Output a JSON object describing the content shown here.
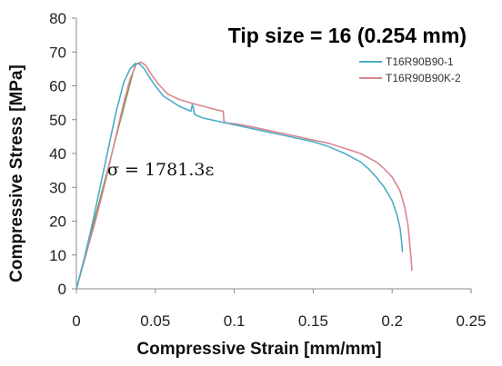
{
  "chart_data": {
    "type": "line",
    "title": "Tip size = 16 (0.254 mm)",
    "xlabel": "Compressive Strain [mm/mm]",
    "ylabel": "Compressive Stress [MPa]",
    "xlim": [
      0,
      0.25
    ],
    "ylim": [
      0,
      80
    ],
    "xticks": [
      0,
      0.05,
      0.1,
      0.15,
      0.2,
      0.25
    ],
    "xtick_labels": [
      "0",
      "0.05",
      "0.1",
      "0.15",
      "0.2",
      "0.25"
    ],
    "yticks": [
      0,
      10,
      20,
      30,
      40,
      50,
      60,
      70,
      80
    ],
    "ytick_labels": [
      "0",
      "10",
      "20",
      "30",
      "40",
      "50",
      "60",
      "70",
      "80"
    ],
    "grid": false,
    "legend_position": "top-right",
    "series": [
      {
        "name": "T16R90B90-1",
        "color": "#4bacc6",
        "x": [
          0,
          0.005,
          0.01,
          0.015,
          0.02,
          0.025,
          0.03,
          0.034,
          0.037,
          0.04,
          0.043,
          0.047,
          0.05,
          0.055,
          0.06,
          0.065,
          0.07,
          0.0725,
          0.0735,
          0.075,
          0.08,
          0.085,
          0.09,
          0.095,
          0.1,
          0.11,
          0.12,
          0.13,
          0.14,
          0.15,
          0.16,
          0.17,
          0.18,
          0.185,
          0.19,
          0.195,
          0.2,
          0.203,
          0.205,
          0.206,
          0.2065
        ],
        "y": [
          0,
          9,
          19,
          30,
          41,
          52,
          61,
          65,
          66.5,
          66.5,
          65,
          62,
          60,
          57,
          55.5,
          54,
          53,
          52.5,
          54.5,
          51.5,
          50.5,
          50,
          49.5,
          49,
          48.5,
          47.5,
          46.5,
          45.5,
          44.5,
          43.5,
          42,
          40,
          37.5,
          35.5,
          33,
          30,
          26,
          22,
          18,
          14,
          11
        ]
      },
      {
        "name": "T16R90B90K-2",
        "color": "#d9868e",
        "x": [
          0,
          0.006,
          0.012,
          0.018,
          0.024,
          0.03,
          0.034,
          0.038,
          0.041,
          0.044,
          0.048,
          0.052,
          0.058,
          0.065,
          0.072,
          0.08,
          0.088,
          0.093,
          0.0935,
          0.095,
          0.1,
          0.11,
          0.12,
          0.13,
          0.14,
          0.15,
          0.16,
          0.17,
          0.18,
          0.19,
          0.195,
          0.2,
          0.205,
          0.208,
          0.21,
          0.211,
          0.212,
          0.2125
        ],
        "y": [
          0,
          10,
          20,
          31,
          43,
          55,
          62,
          66.5,
          67,
          66,
          63,
          60.5,
          57.5,
          56,
          55,
          54,
          53,
          52.5,
          49.5,
          49,
          48.8,
          48,
          47,
          46,
          45,
          44,
          43,
          41.5,
          40,
          37.5,
          35.5,
          33,
          29,
          24,
          19,
          14,
          9,
          5.5
        ]
      }
    ],
    "annotations": [
      {
        "text": "σ = 1781.3ε",
        "line_color": "#6b8e4e",
        "line_x": [
          0,
          0.0375
        ],
        "line_y": [
          0,
          66.8
        ]
      }
    ]
  }
}
